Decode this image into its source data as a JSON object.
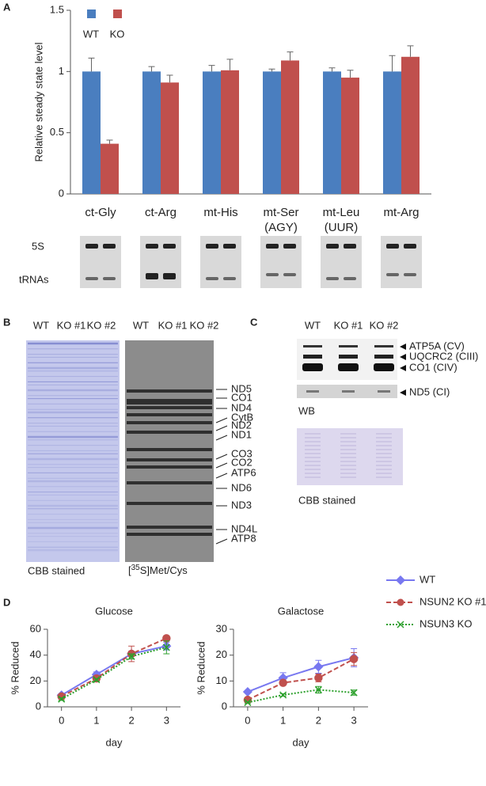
{
  "chart_data": [
    {
      "type": "bar",
      "ylabel": "Relative steady state level",
      "categories": [
        "ct-Gly",
        "ct-Arg",
        "mt-His",
        "mt-Ser\n(AGY)",
        "mt-Leu\n(UUR)",
        "mt-Arg"
      ],
      "series": [
        {
          "name": "WT",
          "color": "#4a7ebf",
          "values": [
            1,
            1,
            1,
            1,
            1,
            1
          ],
          "errors": [
            0.11,
            0.04,
            0.05,
            0.02,
            0.03,
            0.13
          ]
        },
        {
          "name": "KO",
          "color": "#c0504d",
          "values": [
            0.41,
            0.91,
            1.01,
            1.09,
            0.95,
            1.12
          ],
          "errors": [
            0.03,
            0.06,
            0.09,
            0.07,
            0.06,
            0.09
          ]
        }
      ],
      "ylim": [
        0,
        1.5
      ],
      "yticks": [
        0,
        0.5,
        1,
        1.5
      ],
      "grid": false,
      "legend": "top-left"
    },
    {
      "type": "line",
      "title": "Glucose",
      "xlabel": "day",
      "ylabel": "% Reduced",
      "x": [
        0,
        1,
        2,
        3
      ],
      "xlim": [
        -0.4,
        3.4
      ],
      "xticks": [
        0,
        1,
        2,
        3
      ],
      "ylim": [
        0,
        60
      ],
      "yticks": [
        0,
        20,
        40,
        60
      ],
      "series": [
        {
          "color": "#7878f0",
          "line_style": "solid",
          "marker": "diamond",
          "values": [
            9,
            25,
            41,
            47
          ],
          "errors": [
            1,
            2,
            2,
            3
          ]
        },
        {
          "color": "#c0504d",
          "line_style": "dashed",
          "marker": "circle",
          "values": [
            8,
            22,
            41,
            53
          ],
          "errors": [
            1,
            2,
            6,
            2
          ]
        },
        {
          "color": "#2ca02c",
          "line_style": "dotted",
          "marker": "x",
          "values": [
            6,
            21,
            39,
            46
          ],
          "errors": [
            1,
            1,
            2,
            5
          ]
        }
      ]
    },
    {
      "type": "line",
      "title": "Galactose",
      "xlabel": "day",
      "ylabel": "% Reduced",
      "x": [
        0,
        1,
        2,
        3
      ],
      "xlim": [
        -0.4,
        3.4
      ],
      "xticks": [
        0,
        1,
        2,
        3
      ],
      "ylim": [
        0,
        30
      ],
      "yticks": [
        0,
        10,
        20,
        30
      ],
      "legend": "right",
      "series": [
        {
          "name": "WT",
          "color": "#7878f0",
          "line_style": "solid",
          "marker": "diamond",
          "values": [
            5.8,
            11.2,
            15.5,
            19
          ],
          "errors": [
            0.3,
            2,
            2.5,
            3.5
          ]
        },
        {
          "name": "NSUN2 KO #1",
          "color": "#c0504d",
          "line_style": "dashed",
          "marker": "circle",
          "values": [
            2.7,
            9.3,
            11.2,
            18.5
          ],
          "errors": [
            0.5,
            0.5,
            1.5,
            2.5
          ]
        },
        {
          "name": "NSUN3 KO",
          "color": "#2ca02c",
          "line_style": "dotted",
          "marker": "x",
          "values": [
            1.7,
            4.6,
            6.6,
            5.5
          ],
          "errors": [
            0.3,
            0.5,
            1.3,
            1
          ]
        }
      ]
    }
  ],
  "panel_labels": [
    "A",
    "B",
    "C",
    "D"
  ],
  "gel_a": {
    "rows": [
      "5S",
      "tRNAs"
    ]
  },
  "panel_b": {
    "lanes": [
      "WT",
      "KO #1",
      "KO #2"
    ],
    "bands": [
      "ND5",
      "CO1",
      "ND4",
      "CytB",
      "ND2",
      "ND1",
      "CO3",
      "CO2",
      "ATP6",
      "ND6",
      "ND3",
      "ND4L",
      "ATP8"
    ],
    "caption_left": "CBB stained",
    "caption_right": {
      "pre": "[",
      "sup": "35",
      "post": "S]Met/Cys"
    }
  },
  "panel_c": {
    "lanes": [
      "WT",
      "KO #1",
      "KO #2"
    ],
    "bands": [
      "ATP5A (CV)",
      "UQCRC2 (CIII)",
      "CO1 (CIV)"
    ],
    "nd5": "ND5 (CI)",
    "wb": "WB",
    "caption": "CBB stained"
  }
}
